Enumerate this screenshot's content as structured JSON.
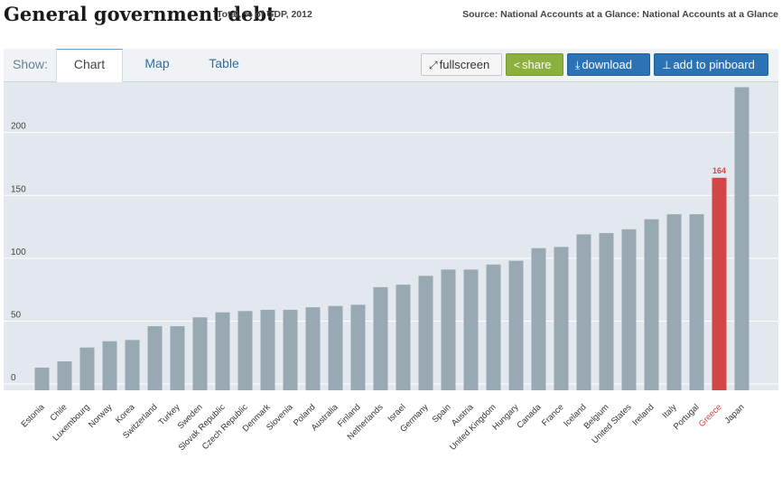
{
  "header": {
    "title": "General government debt",
    "subtitle": "Total, % of GDP, 2012",
    "source": "Source: National Accounts at a Glance: National Accounts at a Glance"
  },
  "toolbar": {
    "show_label": "Show:",
    "tabs": [
      {
        "label": "Chart",
        "active": true
      },
      {
        "label": "Map",
        "active": false
      },
      {
        "label": "Table",
        "active": false
      }
    ],
    "buttons": {
      "fullscreen": "fullscreen",
      "share": "share",
      "download": "download",
      "pinboard": "add to pinboard"
    }
  },
  "chart_data": {
    "type": "bar",
    "title": "General government debt",
    "xlabel": "",
    "ylabel": "",
    "ylim": [
      -5,
      240
    ],
    "yticks": [
      0,
      50,
      100,
      150,
      200
    ],
    "grid": true,
    "bar_color": "#98a9b4",
    "highlight_color": "#d64545",
    "highlight_category": "Greece",
    "highlight_label": "164",
    "categories": [
      "Estonia",
      "Chile",
      "Luxembourg",
      "Norway",
      "Korea",
      "Switzerland",
      "Turkey",
      "Sweden",
      "Slovak Republic",
      "Czech Republic",
      "Denmark",
      "Slovenia",
      "Poland",
      "Australia",
      "Finland",
      "Netherlands",
      "Israel",
      "Germany",
      "Spain",
      "Austria",
      "United Kingdom",
      "Hungary",
      "Canada",
      "France",
      "Iceland",
      "Belgium",
      "United States",
      "Ireland",
      "Italy",
      "Portugal",
      "Greece",
      "Japan"
    ],
    "values": [
      13,
      18,
      29,
      34,
      35,
      46,
      46,
      53,
      57,
      58,
      59,
      59,
      61,
      62,
      63,
      77,
      79,
      86,
      91,
      91,
      95,
      98,
      108,
      109,
      119,
      120,
      123,
      131,
      135,
      135,
      164,
      236
    ]
  }
}
